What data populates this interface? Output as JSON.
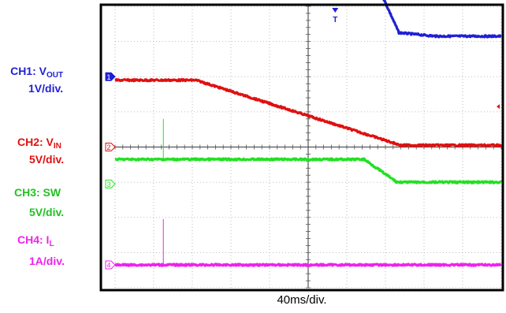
{
  "chart_data": {
    "type": "line",
    "time_div_label": "40ms/div.",
    "x_divisions": 10,
    "y_divisions": 8,
    "trigger_marker": "T",
    "series": [
      {
        "id": "ch1",
        "channel": "1",
        "name_main": "CH1: V",
        "name_sub": "OUT",
        "scale": "1V/div.",
        "color": "#1f1fd6",
        "ground_div": 6.0,
        "points": [
          [
            0,
            3.65
          ],
          [
            1.85,
            3.65
          ],
          [
            2.1,
            3.72
          ],
          [
            2.5,
            3.68
          ],
          [
            6.35,
            3.68
          ],
          [
            7.35,
            1.25
          ],
          [
            8.3,
            1.15
          ],
          [
            10,
            1.15
          ]
        ]
      },
      {
        "id": "ch2",
        "channel": "2",
        "name_main": "CH2: V",
        "name_sub": "IN",
        "scale": "5V/div.",
        "color": "#e01010",
        "ground_div": 4.0,
        "points": [
          [
            0,
            1.9
          ],
          [
            2.1,
            1.9
          ],
          [
            7.4,
            0.05
          ],
          [
            10,
            0.05
          ]
        ]
      },
      {
        "id": "ch3",
        "channel": "3",
        "name_main": "CH3: SW",
        "name_sub": "",
        "scale": "5V/div.",
        "color": "#22e022",
        "ground_div": 2.95,
        "points": [
          [
            0,
            0.7
          ],
          [
            6.45,
            0.7
          ],
          [
            7.3,
            0.05
          ],
          [
            10,
            0.05
          ]
        ],
        "spike": [
          1.25,
          1.15
        ]
      },
      {
        "id": "ch4",
        "channel": "4",
        "name_main": "CH4: I",
        "name_sub": "L",
        "scale": "1A/div.",
        "color": "#ee22ee",
        "ground_div": 0.65,
        "points": [
          [
            0,
            0.0
          ],
          [
            10,
            0.0
          ]
        ],
        "spike": [
          1.25,
          1.3
        ]
      }
    ]
  }
}
